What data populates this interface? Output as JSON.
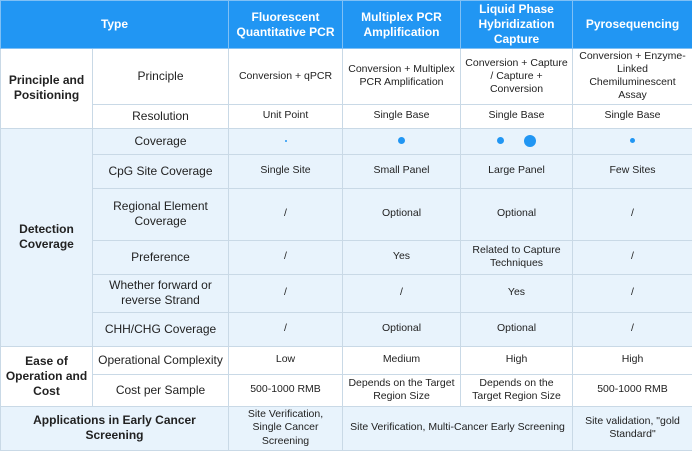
{
  "table": {
    "header": [
      "Type",
      "Fluorescent Quantitative PCR",
      "Multiplex PCR Amplification",
      "Liquid Phase Hybridization Capture",
      "Pyrosequencing"
    ],
    "groups": [
      {
        "label": "Principle and Positioning",
        "rows": [
          {
            "label": "Principle",
            "cells": [
              "Conversion + qPCR",
              "Conversion + Multiplex PCR Amplification",
              "Conversion + Capture / Capture + Conversion",
              "Conversion + Enzyme-Linked Chemiluminescent Assay"
            ]
          },
          {
            "label": "Resolution",
            "cells": [
              "Unit Point",
              "Single Base",
              "Single Base",
              "Single Base"
            ]
          }
        ]
      },
      {
        "label": "Detection Coverage",
        "rows": [
          {
            "label": "Coverage"
          },
          {
            "label": "CpG Site Coverage",
            "cells": [
              "Single Site",
              "Small Panel",
              "Large Panel",
              "Few Sites"
            ]
          },
          {
            "label": "Regional Element Coverage",
            "cells": [
              "/",
              "Optional",
              "Optional",
              "/"
            ]
          },
          {
            "label": "Preference",
            "cells": [
              "/",
              "Yes",
              "Related to Capture Techniques",
              "/"
            ]
          },
          {
            "label": "Whether forward or reverse Strand",
            "cells": [
              "/",
              "/",
              "Yes",
              "/"
            ]
          },
          {
            "label": "CHH/CHG Coverage",
            "cells": [
              "/",
              "Optional",
              "Optional",
              "/"
            ]
          }
        ]
      },
      {
        "label": "Ease of Operation and Cost",
        "rows": [
          {
            "label": "Operational Complexity",
            "cells": [
              "Low",
              "Medium",
              "High",
              "High"
            ]
          },
          {
            "label": "Cost per Sample",
            "cells": [
              "500-1000 RMB",
              "Depends on the Target Region Size",
              "Depends on the Target Region Size",
              "500-1000 RMB"
            ]
          }
        ]
      }
    ],
    "footer": {
      "label": "Applications in Early Cancer Screening",
      "cells": [
        "Site Verification, Single Cancer Screening",
        "Site Verification, Multi-Cancer Early Screening",
        "Site validation, \"gold Standard\""
      ]
    }
  }
}
